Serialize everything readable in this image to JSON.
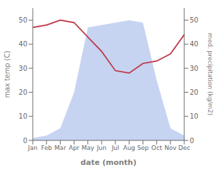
{
  "chart_data": {
    "type": "line",
    "categories": [
      "Jan",
      "Feb",
      "Mar",
      "Apr",
      "May",
      "Jun",
      "Jul",
      "Aug",
      "Sep",
      "Oct",
      "Nov",
      "Dec"
    ],
    "series": [
      {
        "type": "area",
        "color": "#b3c6ed",
        "values": [
          1,
          2,
          5,
          20,
          47,
          48,
          49,
          50,
          49,
          25,
          5,
          2
        ]
      },
      {
        "type": "line",
        "color": "#c04050",
        "axis": "y2",
        "values": [
          47,
          48,
          50,
          49,
          43,
          37,
          29,
          28,
          32,
          33,
          36,
          44
        ]
      }
    ],
    "xlabel": "date (month)",
    "ylabel": "max temp (C)",
    "y2label": "med. precipitation (kg/m2)",
    "ylim": [
      0,
      55
    ],
    "yticks": [
      0,
      10,
      20,
      30,
      40,
      50
    ],
    "y2lim": [
      0,
      55
    ],
    "y2ticks": [
      0,
      10,
      20,
      30,
      40,
      50
    ],
    "grid": false
  }
}
